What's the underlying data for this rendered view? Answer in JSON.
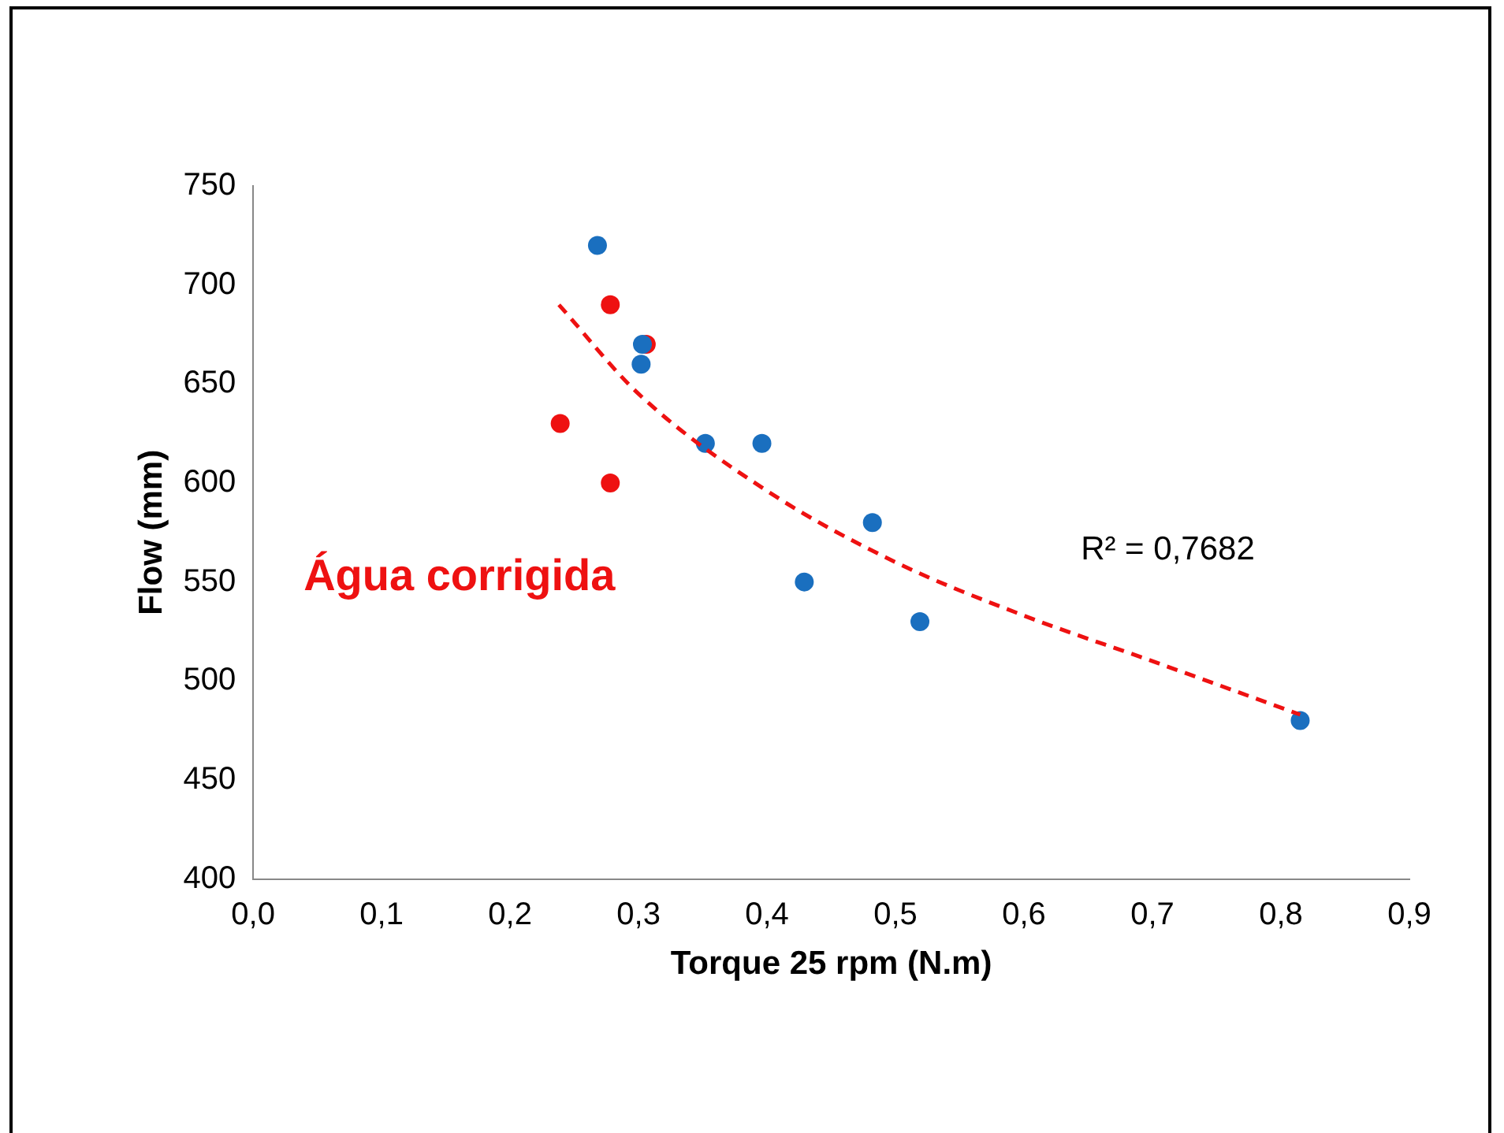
{
  "chart_data": {
    "type": "scatter",
    "xlabel": "Torque 25 rpm (N.m)",
    "ylabel": "Flow (mm)",
    "xlim": [
      0,
      0.9
    ],
    "xticks": [
      {
        "value": 0,
        "label": "0,0"
      },
      {
        "value": 0.1,
        "label": "0,1"
      },
      {
        "value": 0.2,
        "label": "0,2"
      },
      {
        "value": 0.3,
        "label": "0,3"
      },
      {
        "value": 0.4,
        "label": "0,4"
      },
      {
        "value": 0.5,
        "label": "0,5"
      },
      {
        "value": 0.6,
        "label": "0,6"
      },
      {
        "value": 0.7,
        "label": "0,7"
      },
      {
        "value": 0.8,
        "label": "0,8"
      },
      {
        "value": 0.9,
        "label": "0,9"
      }
    ],
    "ylim": [
      400,
      750
    ],
    "yticks": [
      400,
      450,
      500,
      550,
      600,
      650,
      700,
      750
    ],
    "grid": false,
    "legend": false,
    "marker": "circle",
    "series": [
      {
        "name": "Água corrigida",
        "color": "#ee1111",
        "x": [
          0.239,
          0.278,
          0.278,
          0.306
        ],
        "values": [
          630,
          690,
          600,
          670
        ]
      },
      {
        "color": "#1a6fbf",
        "x": [
          0.268,
          0.303,
          0.302,
          0.352,
          0.396,
          0.429,
          0.482,
          0.519,
          0.815
        ],
        "values": [
          720,
          670,
          660,
          620,
          620,
          550,
          580,
          530,
          480
        ]
      },
      {
        "type": "line",
        "line_style": "dashed",
        "marker": "none",
        "color": "#ee1111",
        "x": [
          0.238,
          0.3,
          0.4,
          0.5,
          0.6,
          0.7,
          0.815
        ],
        "values": [
          690,
          645,
          596,
          560,
          533,
          510,
          483
        ]
      }
    ],
    "annotations": [
      "R² = 0,7682"
    ]
  }
}
